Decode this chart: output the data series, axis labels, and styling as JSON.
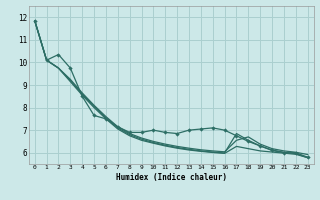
{
  "xlabel": "Humidex (Indice chaleur)",
  "bg_color": "#cce8e8",
  "grid_color": "#aacfcf",
  "line_color": "#2d6e65",
  "xlim": [
    -0.5,
    23.5
  ],
  "ylim": [
    5.5,
    12.5
  ],
  "xticks": [
    0,
    1,
    2,
    3,
    4,
    5,
    6,
    7,
    8,
    9,
    10,
    11,
    12,
    13,
    14,
    15,
    16,
    17,
    18,
    19,
    20,
    21,
    22,
    23
  ],
  "yticks": [
    6,
    7,
    8,
    9,
    10,
    11,
    12
  ],
  "line_jagged": [
    11.85,
    10.1,
    10.35,
    9.75,
    8.5,
    7.65,
    7.5,
    7.15,
    6.9,
    6.9,
    7.0,
    6.9,
    6.85,
    7.0,
    7.05,
    7.1,
    7.0,
    6.75,
    6.5,
    6.3,
    6.1,
    6.0,
    6.0,
    5.8
  ],
  "line_smooth1": [
    11.85,
    10.1,
    9.75,
    9.25,
    8.65,
    8.1,
    7.6,
    7.15,
    6.85,
    6.65,
    6.5,
    6.38,
    6.28,
    6.2,
    6.13,
    6.08,
    6.04,
    6.55,
    6.7,
    6.38,
    6.18,
    6.08,
    6.02,
    5.92
  ],
  "line_smooth2": [
    11.85,
    10.1,
    9.75,
    9.2,
    8.6,
    8.05,
    7.55,
    7.1,
    6.8,
    6.6,
    6.45,
    6.33,
    6.23,
    6.15,
    6.08,
    6.03,
    5.99,
    6.85,
    6.55,
    6.3,
    6.12,
    6.02,
    5.96,
    5.78
  ],
  "line_smooth3": [
    11.85,
    10.1,
    9.75,
    9.15,
    8.55,
    8.0,
    7.5,
    7.05,
    6.75,
    6.55,
    6.42,
    6.3,
    6.2,
    6.12,
    6.06,
    6.01,
    5.97,
    6.28,
    6.18,
    6.08,
    6.03,
    5.98,
    5.93,
    5.78
  ]
}
